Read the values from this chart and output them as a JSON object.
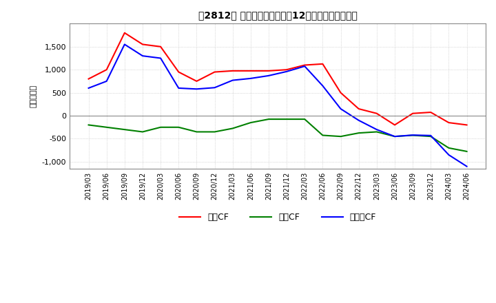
{
  "title": "　2812　 キャッシュフローの12か月移動合計の推移",
  "ylabel": "（百万円）",
  "x_labels": [
    "2019/03",
    "2019/06",
    "2019/09",
    "2019/12",
    "2020/03",
    "2020/06",
    "2020/09",
    "2020/12",
    "2021/03",
    "2021/06",
    "2021/09",
    "2021/12",
    "2022/03",
    "2022/06",
    "2022/09",
    "2022/12",
    "2023/03",
    "2023/06",
    "2023/09",
    "2023/12",
    "2024/03",
    "2024/06"
  ],
  "operating_cf": [
    800,
    1000,
    1800,
    1550,
    1500,
    950,
    750,
    950,
    975,
    975,
    975,
    1000,
    1100,
    1125,
    500,
    150,
    50,
    -200,
    50,
    75,
    -150,
    -200
  ],
  "investing_cf": [
    -200,
    -250,
    -300,
    -350,
    -250,
    -250,
    -350,
    -350,
    -275,
    -150,
    -75,
    -75,
    -75,
    -425,
    -450,
    -375,
    -350,
    -450,
    -425,
    -450,
    -700,
    -775
  ],
  "free_cf": [
    600,
    750,
    1550,
    1300,
    1250,
    600,
    580,
    610,
    770,
    810,
    870,
    960,
    1075,
    650,
    150,
    -100,
    -300,
    -450,
    -420,
    -430,
    -850,
    -1100
  ],
  "operating_color": "#ff0000",
  "investing_color": "#008000",
  "free_color": "#0000ff",
  "background_color": "#ffffff",
  "grid_color": "#bbbbbb",
  "ylim": [
    -1150,
    2000
  ],
  "yticks": [
    -1000,
    -500,
    0,
    500,
    1000,
    1500
  ],
  "legend_labels": [
    "営業CF",
    "投資CF",
    "フリーCF"
  ]
}
